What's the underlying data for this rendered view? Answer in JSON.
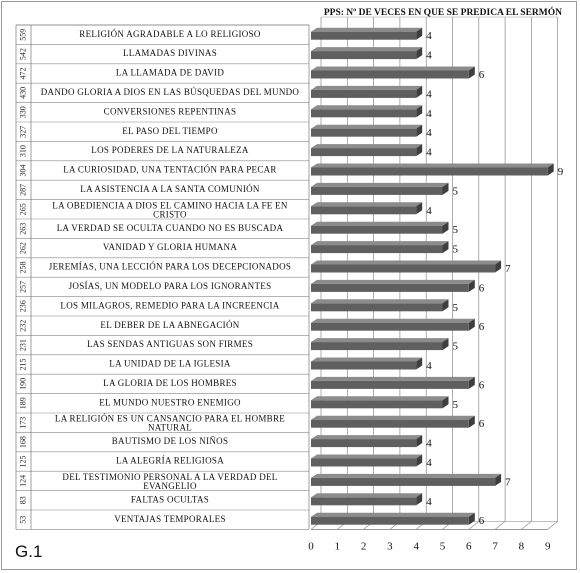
{
  "figure_label": "G.1",
  "chart_data": {
    "type": "bar",
    "orientation": "horizontal",
    "title": "PPS: Nº DE VECES EN QUE SE PREDICA EL SERMÓN",
    "xlim": [
      0,
      9
    ],
    "x_ticks": [
      "0",
      "1",
      "2",
      "3",
      "4",
      "5",
      "6",
      "7",
      "8",
      "9"
    ],
    "grid": true,
    "bar_color": "#5f5f5f",
    "categories": [
      {
        "code": "559",
        "label": "RELIGIÓN AGRADABLE A LO RELIGIOSO",
        "value": 4
      },
      {
        "code": "542",
        "label": "LLAMADAS DIVINAS",
        "value": 4
      },
      {
        "code": "472",
        "label": "LA LLAMADA DE DAVID",
        "value": 6
      },
      {
        "code": "430",
        "label": "DANDO GLORIA A DIOS EN LAS BÚSQUEDAS DEL MUNDO",
        "value": 4
      },
      {
        "code": "330",
        "label": "CONVERSIONES REPENTINAS",
        "value": 4
      },
      {
        "code": "327",
        "label": "EL PASO DEL TIEMPO",
        "value": 4
      },
      {
        "code": "310",
        "label": "LOS PODERES DE LA NATURALEZA",
        "value": 4
      },
      {
        "code": "304",
        "label": "LA CURIOSIDAD, UNA TENTACIÓN PARA PECAR",
        "value": 9
      },
      {
        "code": "287",
        "label": "LA ASISTENCIA A LA SANTA COMUNIÓN",
        "value": 5
      },
      {
        "code": "265",
        "label": "LA OBEDIENCIA A DIOS EL CAMINO HACIA LA FE EN CRISTO",
        "value": 4
      },
      {
        "code": "263",
        "label": "LA VERDAD SE OCULTA CUANDO NO ES BUSCADA",
        "value": 5
      },
      {
        "code": "262",
        "label": "VANIDAD  Y GLORIA HUMANA",
        "value": 5
      },
      {
        "code": "258",
        "label": "JEREMÍAS, UNA LECCIÓN PARA LOS DECEPCIONADOS",
        "value": 7
      },
      {
        "code": "257",
        "label": "JOSÍAS, UN MODELO PARA LOS IGNORANTES",
        "value": 6
      },
      {
        "code": "236",
        "label": "LOS MILAGROS, REMEDIO PARA LA INCREENCIA",
        "value": 5
      },
      {
        "code": "232",
        "label": "EL DEBER DE LA ABNEGACIÓN",
        "value": 6
      },
      {
        "code": "231",
        "label": "LAS SENDAS ANTIGUAS SON FIRMES",
        "value": 5
      },
      {
        "code": "215",
        "label": "LA UNIDAD DE LA IGLESIA",
        "value": 4
      },
      {
        "code": "190",
        "label": "LA GLORIA DE LOS HOMBRES",
        "value": 6
      },
      {
        "code": "189",
        "label": "EL MUNDO NUESTRO ENEMIGO",
        "value": 5
      },
      {
        "code": "173",
        "label": "LA RELIGIÓN ES UN CANSANCIO PARA EL HOMBRE NATURAL",
        "value": 6
      },
      {
        "code": "168",
        "label": "BAUTISMO DE LOS NIÑOS",
        "value": 4
      },
      {
        "code": "125",
        "label": "LA ALEGRÍA RELIGIOSA",
        "value": 4
      },
      {
        "code": "124",
        "label": "DEL TESTIMONIO PERSONAL A LA VERDAD DEL EVANGELIO",
        "value": 7
      },
      {
        "code": "83",
        "label": "FALTAS OCULTAS",
        "value": 4
      },
      {
        "code": "53",
        "label": "VENTAJAS TEMPORALES",
        "value": 6
      }
    ]
  }
}
